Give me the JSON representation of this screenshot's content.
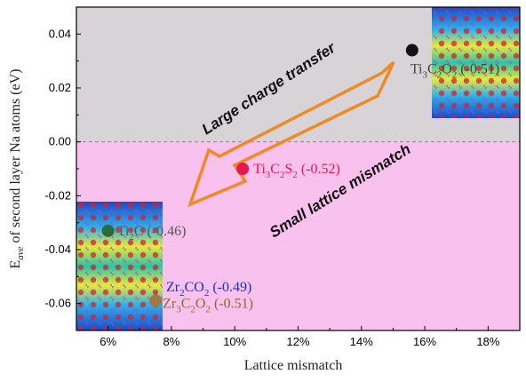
{
  "chart_data": {
    "type": "scatter",
    "title": "",
    "xlabel": "Lattice mismatch",
    "ylabel_main": "E",
    "ylabel_sub": "ave",
    "ylabel_rest": " of second layer Na atoms (eV)",
    "xlim": [
      5,
      19
    ],
    "ylim": [
      -0.07,
      0.05
    ],
    "x_ticks": [
      6,
      8,
      10,
      12,
      14,
      16,
      18
    ],
    "x_tick_labels": [
      "6%",
      "8%",
      "10%",
      "12%",
      "14%",
      "16%",
      "18%"
    ],
    "y_ticks": [
      0.04,
      0.02,
      0.0,
      -0.02,
      -0.04,
      -0.06
    ],
    "y_tick_labels": [
      "0.04",
      "0.02",
      "0.00",
      "-0.02",
      "-0.04",
      "-0.06"
    ],
    "dashed_line_y": 0.0,
    "regions": [
      {
        "y_from": 0.0,
        "y_to": 0.05,
        "color": "#d7d3d7"
      },
      {
        "y_from": -0.07,
        "y_to": 0.0,
        "color": "#f9c2ee"
      }
    ],
    "points": [
      {
        "x": 15.6,
        "y": 0.034,
        "color": "#111111",
        "label_color": "#444444",
        "label_parts": [
          {
            "t": "Ti"
          },
          {
            "t": "3",
            "sub": true
          },
          {
            "t": "C"
          },
          {
            "t": "2",
            "sub": true
          },
          {
            "t": "O"
          },
          {
            "t": "2",
            "sub": true
          },
          {
            "t": " (-0.51)"
          }
        ]
      },
      {
        "x": 10.25,
        "y": -0.01,
        "color": "#e8174f",
        "label_color": "#e8174f",
        "label_parts": [
          {
            "t": "Ti"
          },
          {
            "t": "3",
            "sub": true
          },
          {
            "t": "C"
          },
          {
            "t": "2",
            "sub": true
          },
          {
            "t": "S"
          },
          {
            "t": "2",
            "sub": true
          },
          {
            "t": " (-0.52)"
          }
        ]
      },
      {
        "x": 6.0,
        "y": -0.033,
        "color": "#2f6b3a",
        "label_color": "#555555",
        "label_parts": [
          {
            "t": "Ti"
          },
          {
            "t": "2",
            "sub": true
          },
          {
            "t": "C"
          },
          {
            "t": " (-0.46)"
          }
        ]
      },
      {
        "x": 7.5,
        "y": -0.059,
        "color": "#a07840",
        "label_color": "#8b6a2d",
        "label_parts": [
          {
            "t": "Zr"
          },
          {
            "t": "3",
            "sub": true
          },
          {
            "t": "C"
          },
          {
            "t": "2",
            "sub": true
          },
          {
            "t": "O"
          },
          {
            "t": "2",
            "sub": true
          },
          {
            "t": " (-0.51)"
          }
        ]
      }
    ],
    "extra_labels": [
      {
        "near_x": 7.6,
        "near_y": -0.053,
        "color": "#1a2fd0",
        "label_parts": [
          {
            "t": "Zr"
          },
          {
            "t": "2",
            "sub": true
          },
          {
            "t": "CO"
          },
          {
            "t": "2",
            "sub": true
          },
          {
            "t": " (-0.49)"
          }
        ]
      }
    ],
    "annotations": [
      {
        "text": "Large charge transfer"
      },
      {
        "text": "Small lattice mismatch"
      }
    ],
    "arrow_color": "#f08a24"
  }
}
